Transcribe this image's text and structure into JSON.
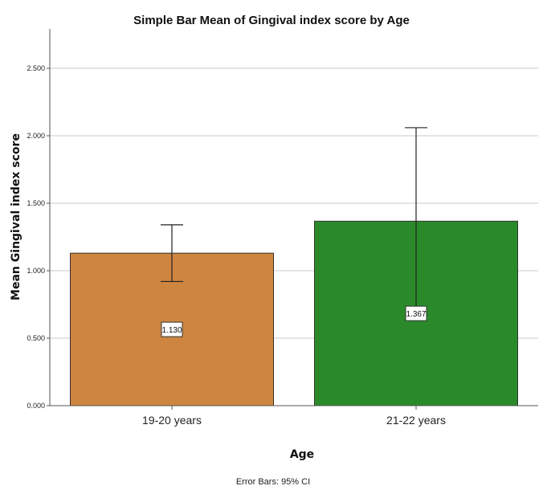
{
  "chart_data": {
    "type": "bar",
    "title": "Simple Bar Mean of Gingival index score by Age",
    "xlabel": "Age",
    "ylabel": "Mean Gingival index score",
    "categories": [
      "19-20 years",
      "21-22 years"
    ],
    "values": [
      1.13,
      1.367
    ],
    "value_labels": [
      "1.130",
      "1.367"
    ],
    "ci_lower": [
      0.92,
      0.67
    ],
    "ci_upper": [
      1.34,
      2.06
    ],
    "bar_colors": [
      "#cd853f",
      "#2a8a2a"
    ],
    "ylim": [
      0,
      2.75
    ],
    "yticks": [
      0.0,
      0.5,
      1.0,
      1.5,
      2.0,
      2.5
    ],
    "ytick_labels": [
      "0.000",
      "0.500",
      "1.000",
      "1.500",
      "2.000",
      "2.500"
    ],
    "grid": true,
    "footnote": "Error Bars: 95% CI"
  }
}
